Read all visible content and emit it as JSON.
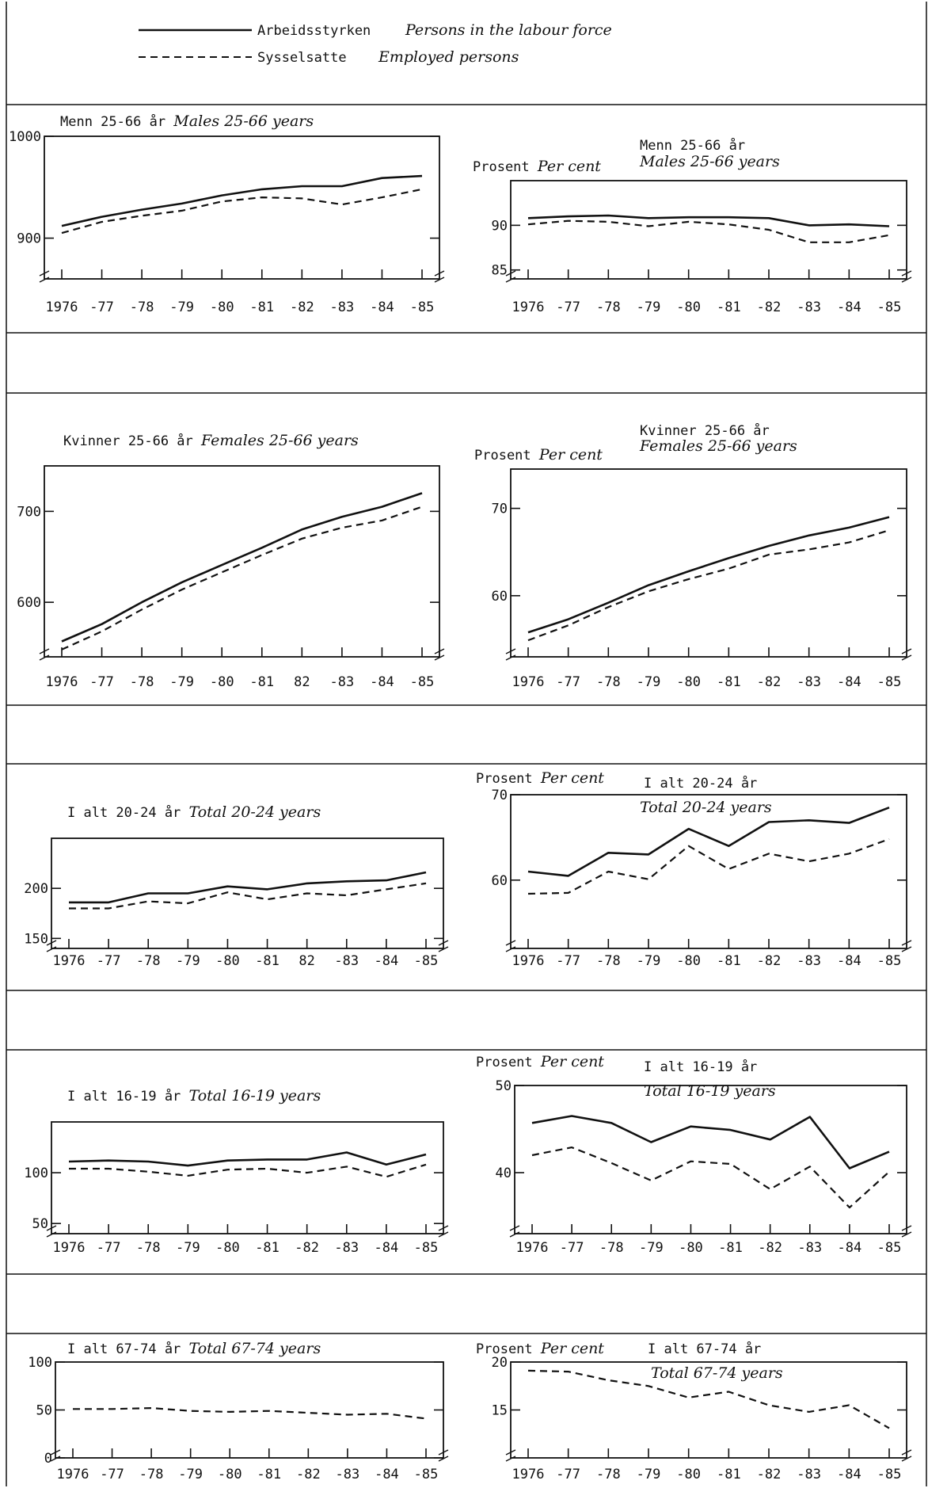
{
  "legend": {
    "items": [
      {
        "no": "Arbeidsstyrken",
        "en": "Persons in the labour force",
        "style": "solid"
      },
      {
        "no": "Sysselsatte",
        "en": "Employed persons",
        "style": "dashed"
      }
    ]
  },
  "chart_data": [
    {
      "type": "line",
      "title": "Menn 25-66 år",
      "title_en": "Males 25-66 years",
      "ylabel": "",
      "x": [
        "1976",
        "-77",
        "-78",
        "-79",
        "-80",
        "-81",
        "-82",
        "-83",
        "-84",
        "-85"
      ],
      "ylim": [
        860,
        1000
      ],
      "yticks": [
        900,
        1000
      ],
      "series": [
        {
          "name": "Arbeidsstyrken",
          "style": "solid",
          "values": [
            912,
            921,
            928,
            934,
            942,
            948,
            951,
            951,
            959,
            961
          ]
        },
        {
          "name": "Sysselsatte",
          "style": "dashed",
          "values": [
            905,
            916,
            922,
            927,
            936,
            940,
            939,
            933,
            940,
            948
          ]
        }
      ]
    },
    {
      "type": "line",
      "title": "Menn 25-66 år",
      "title_en": "Males 25-66 years",
      "ylabel": "Prosent",
      "ylabel_en": "Per cent",
      "x": [
        "1976",
        "-77",
        "-78",
        "-79",
        "-80",
        "-81",
        "-82",
        "-83",
        "-84",
        "-85"
      ],
      "ylim": [
        84,
        95
      ],
      "yticks": [
        85,
        90
      ],
      "series": [
        {
          "name": "Arbeidsstyrken",
          "style": "solid",
          "values": [
            90.8,
            91.0,
            91.1,
            90.8,
            90.9,
            90.9,
            90.8,
            90.0,
            90.1,
            89.9
          ]
        },
        {
          "name": "Sysselsatte",
          "style": "dashed",
          "values": [
            90.1,
            90.5,
            90.4,
            89.9,
            90.4,
            90.1,
            89.5,
            88.1,
            88.1,
            88.9
          ]
        }
      ]
    },
    {
      "type": "line",
      "title": "Kvinner 25-66 år",
      "title_en": "Females 25-66 years",
      "ylabel": "",
      "x": [
        "1976",
        "-77",
        "-78",
        "-79",
        "-80",
        "-81",
        "82",
        "-83",
        "-84",
        "-85"
      ],
      "ylim": [
        540,
        750
      ],
      "yticks": [
        600,
        700
      ],
      "series": [
        {
          "name": "Arbeidsstyrken",
          "style": "solid",
          "values": [
            557,
            576,
            600,
            622,
            641,
            660,
            680,
            694,
            705,
            720
          ]
        },
        {
          "name": "Sysselsatte",
          "style": "dashed",
          "values": [
            548,
            568,
            592,
            614,
            633,
            652,
            670,
            682,
            690,
            705
          ]
        }
      ]
    },
    {
      "type": "line",
      "title": "Kvinner 25-66 år",
      "title_en": "Females 25-66 years",
      "ylabel": "Prosent",
      "ylabel_en": "Per cent",
      "x": [
        "1976",
        "-77",
        "-78",
        "-79",
        "-80",
        "-81",
        "-82",
        "-83",
        "-84",
        "-85"
      ],
      "ylim": [
        53,
        74.5
      ],
      "yticks": [
        60,
        70
      ],
      "series": [
        {
          "name": "Arbeidsstyrken",
          "style": "solid",
          "values": [
            55.8,
            57.3,
            59.2,
            61.2,
            62.8,
            64.3,
            65.7,
            66.9,
            67.8,
            69.0
          ]
        },
        {
          "name": "Sysselsatte",
          "style": "dashed",
          "values": [
            54.9,
            56.6,
            58.7,
            60.5,
            61.9,
            63.1,
            64.7,
            65.3,
            66.1,
            67.5
          ]
        }
      ]
    },
    {
      "type": "line",
      "title": "I alt 20-24 år",
      "title_en": "Total 20-24 years",
      "ylabel": "",
      "x": [
        "1976",
        "-77",
        "-78",
        "-79",
        "-80",
        "-81",
        "82",
        "-83",
        "-84",
        "-85"
      ],
      "ylim": [
        140,
        250
      ],
      "yticks": [
        150,
        200
      ],
      "series": [
        {
          "name": "Arbeidsstyrken",
          "style": "solid",
          "values": [
            186,
            186,
            195,
            195,
            202,
            199,
            205,
            207,
            208,
            216
          ]
        },
        {
          "name": "Sysselsatte",
          "style": "dashed",
          "values": [
            180,
            180,
            187,
            185,
            196,
            189,
            195,
            193,
            199,
            205
          ]
        }
      ]
    },
    {
      "type": "line",
      "title": "I alt 20-24 år",
      "title_en": "Total 20-24 years",
      "ylabel": "Prosent",
      "ylabel_en": "Per cent",
      "x": [
        "1976",
        "-77",
        "-78",
        "-79",
        "-80",
        "-81",
        "-82",
        "-83",
        "-84",
        "-85"
      ],
      "ylim": [
        52,
        70
      ],
      "yticks": [
        60,
        70
      ],
      "series": [
        {
          "name": "Arbeidsstyrken",
          "style": "solid",
          "values": [
            61.0,
            60.5,
            63.2,
            63.0,
            66.0,
            64.0,
            66.8,
            67.0,
            66.7,
            68.5
          ]
        },
        {
          "name": "Sysselsatte",
          "style": "dashed",
          "values": [
            58.4,
            58.5,
            61.0,
            60.1,
            64.0,
            61.3,
            63.1,
            62.2,
            63.1,
            64.8
          ]
        }
      ]
    },
    {
      "type": "line",
      "title": "I alt 16-19 år",
      "title_en": "Total 16-19 years",
      "ylabel": "",
      "x": [
        "1976",
        "-77",
        "-78",
        "-79",
        "-80",
        "-81",
        "-82",
        "-83",
        "-84",
        "-85"
      ],
      "ylim": [
        40,
        150
      ],
      "yticks": [
        50,
        100
      ],
      "series": [
        {
          "name": "Arbeidsstyrken",
          "style": "solid",
          "values": [
            111,
            112,
            111,
            107,
            112,
            113,
            113,
            120,
            108,
            118
          ]
        },
        {
          "name": "Sysselsatte",
          "style": "dashed",
          "values": [
            104,
            104,
            101,
            97,
            103,
            104,
            100,
            106,
            96,
            108
          ]
        }
      ]
    },
    {
      "type": "line",
      "title": "I alt 16-19 år",
      "title_en": "Total 16-19 years",
      "ylabel": "Prosent",
      "ylabel_en": "Per cent",
      "x": [
        "1976",
        "-77",
        "-78",
        "-79",
        "-80",
        "-81",
        "-82",
        "-83",
        "-84",
        "-85"
      ],
      "ylim": [
        33,
        50
      ],
      "yticks": [
        40,
        50
      ],
      "series": [
        {
          "name": "Arbeidsstyrken",
          "style": "solid",
          "values": [
            45.7,
            46.5,
            45.7,
            43.5,
            45.3,
            44.9,
            43.8,
            46.4,
            40.5,
            42.4
          ]
        },
        {
          "name": "Sysselsatte",
          "style": "dashed",
          "values": [
            42.0,
            42.9,
            41.1,
            39.1,
            41.3,
            41.0,
            38.1,
            40.7,
            36.0,
            40.1
          ]
        }
      ]
    },
    {
      "type": "line",
      "title": "I alt 67-74 år",
      "title_en": "Total 67-74 years",
      "ylabel": "",
      "x": [
        "1976",
        "-77",
        "-78",
        "-79",
        "-80",
        "-81",
        "-82",
        "-83",
        "-84",
        "-85"
      ],
      "ylim": [
        0,
        100
      ],
      "yticks": [
        0,
        50,
        100
      ],
      "series": [
        {
          "name": "Sysselsatte",
          "style": "dashed",
          "values": [
            51,
            51,
            52,
            49,
            48,
            49,
            47,
            45,
            46,
            41
          ]
        }
      ]
    },
    {
      "type": "line",
      "title": "I alt 67-74 år",
      "title_en": "Total 67-74 years",
      "ylabel": "Prosent",
      "ylabel_en": "Per cent",
      "x": [
        "1976",
        "-77",
        "-78",
        "-79",
        "-80",
        "-81",
        "-82",
        "-83",
        "-84",
        "-85"
      ],
      "ylim": [
        10,
        20
      ],
      "yticks": [
        15,
        20
      ],
      "series": [
        {
          "name": "Sysselsatte",
          "style": "dashed",
          "values": [
            19.1,
            19.0,
            18.1,
            17.5,
            16.3,
            16.9,
            15.5,
            14.8,
            15.5,
            13.1
          ]
        }
      ]
    }
  ]
}
